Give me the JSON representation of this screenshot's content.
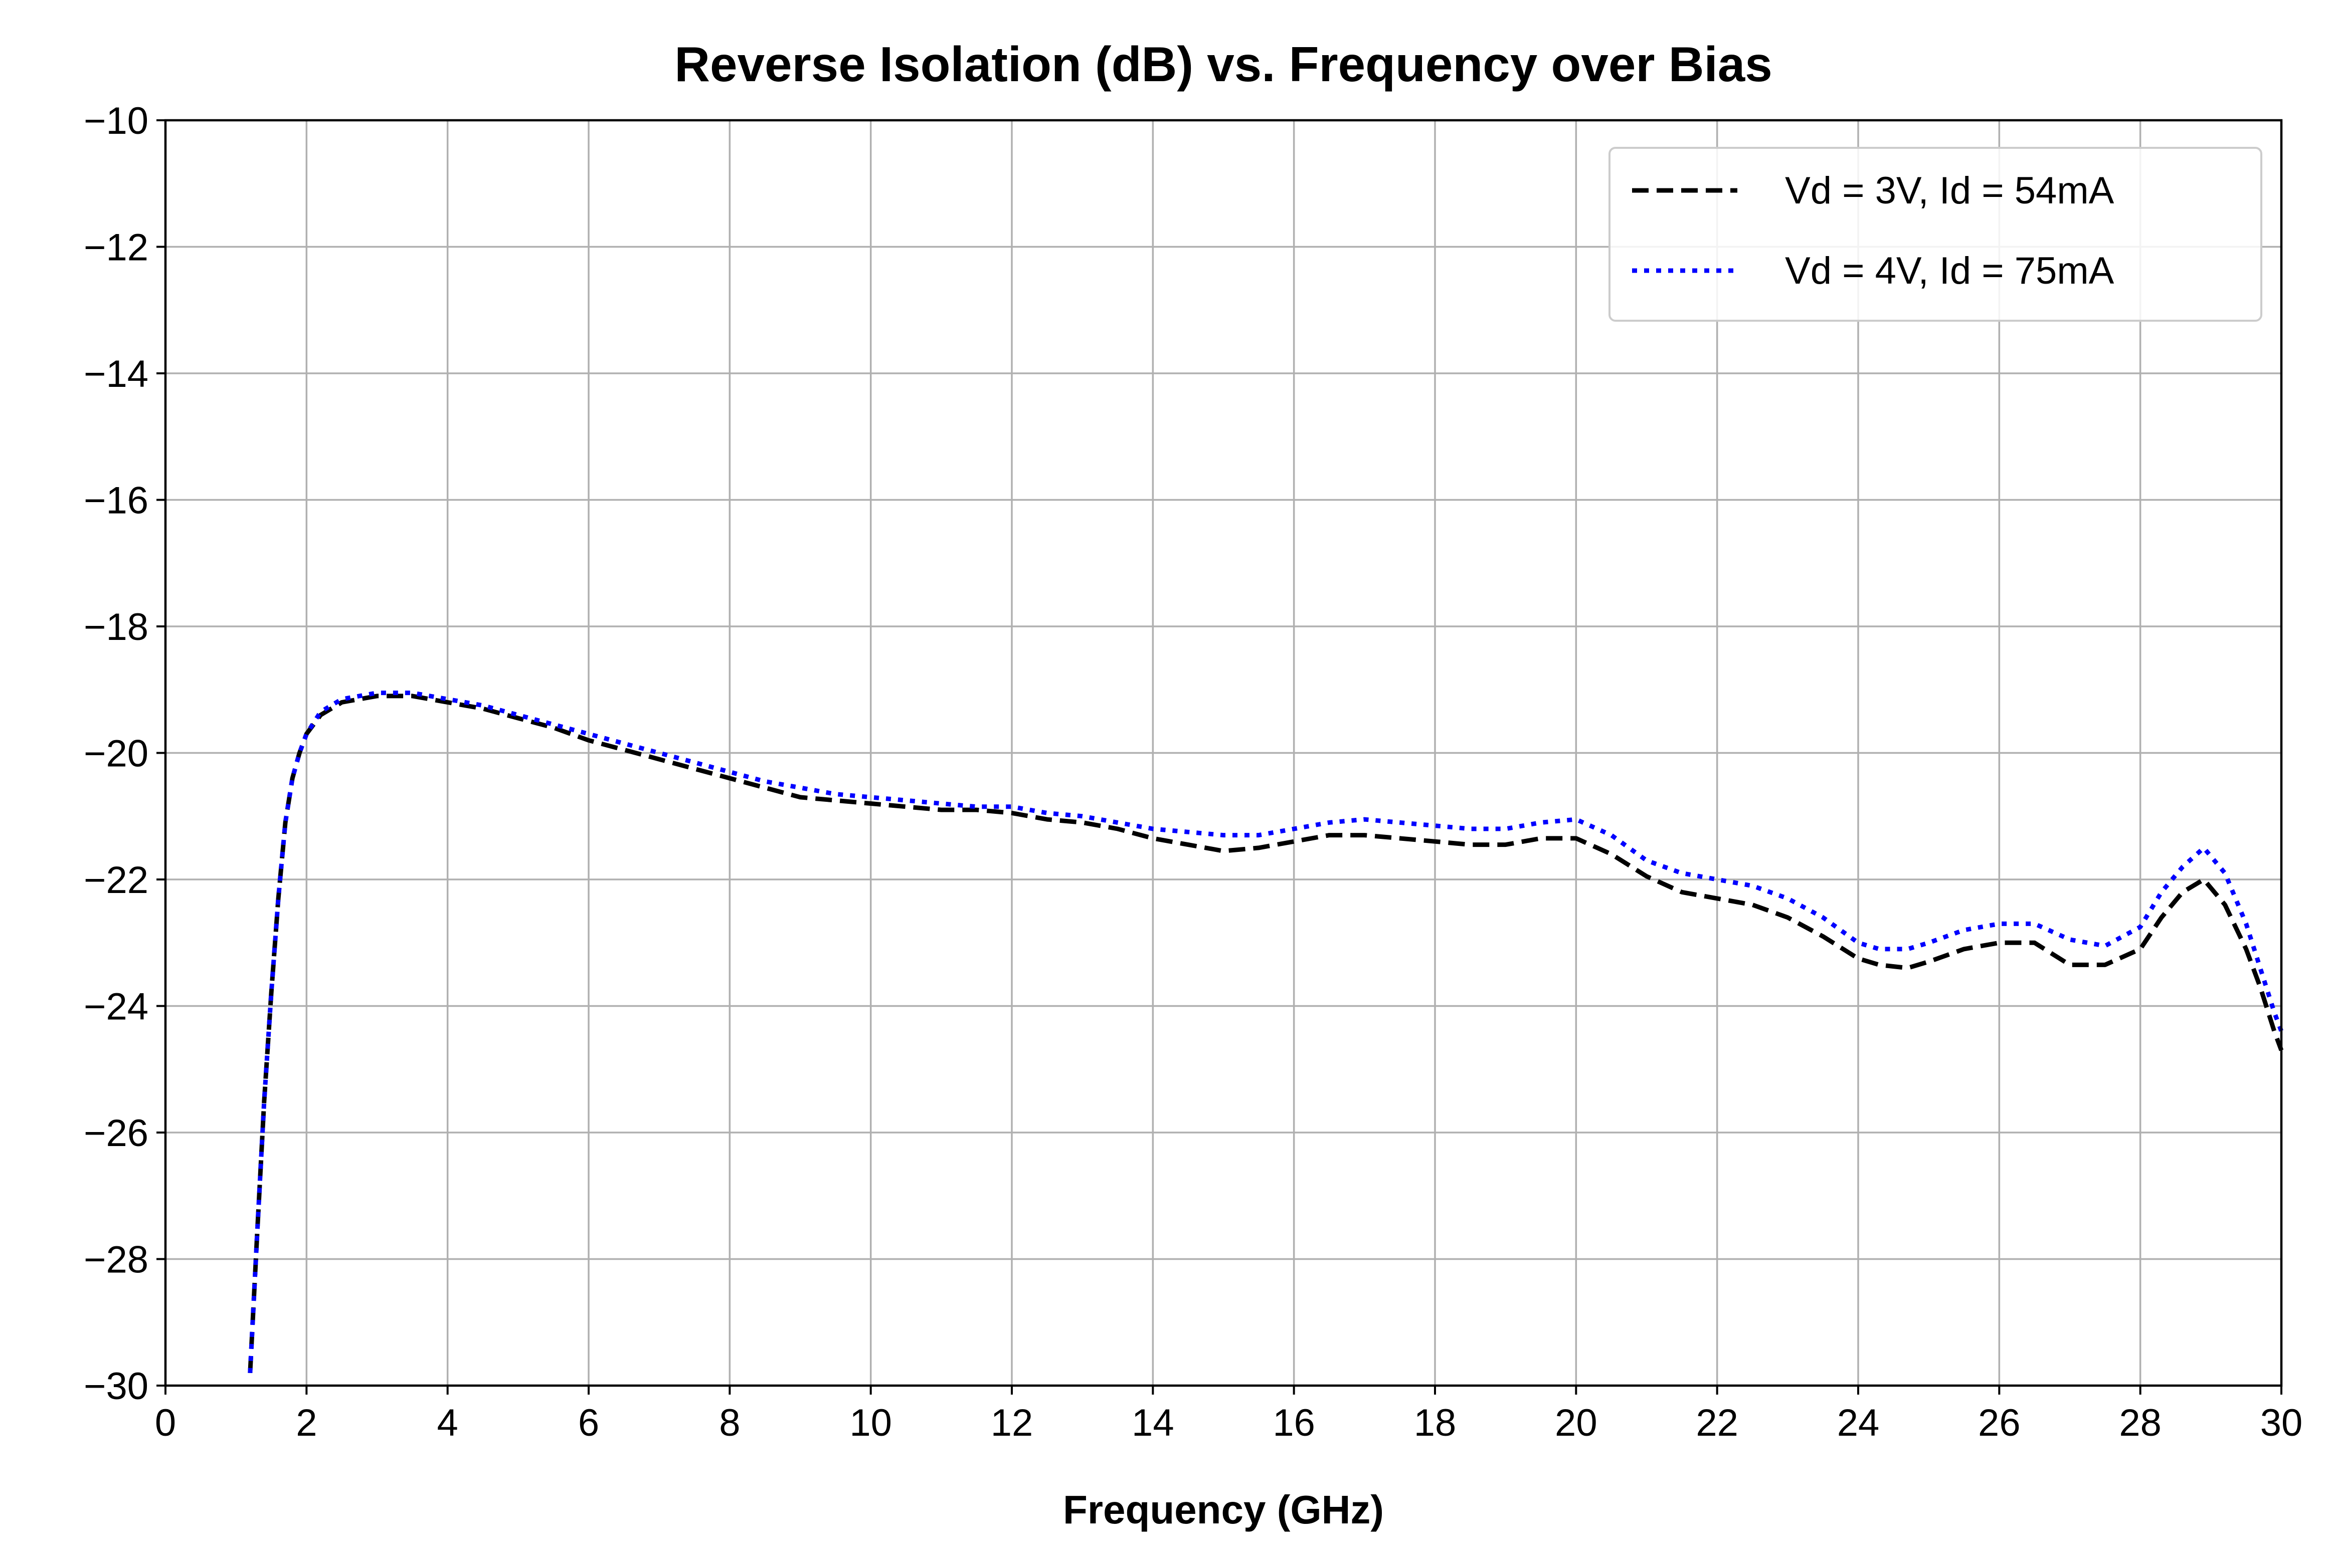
{
  "chart_data": {
    "type": "line",
    "title": "Reverse Isolation (dB) vs. Frequency over Bias",
    "xlabel": "Frequency (GHz)",
    "ylabel": "",
    "xlim": [
      0,
      30
    ],
    "ylim": [
      -30,
      -10
    ],
    "xticks": [
      0,
      2,
      4,
      6,
      8,
      10,
      12,
      14,
      16,
      18,
      20,
      22,
      24,
      26,
      28,
      30
    ],
    "yticks": [
      -30,
      -28,
      -26,
      -24,
      -22,
      -20,
      -18,
      -16,
      -14,
      -12,
      -10
    ],
    "xtick_labels": [
      "0",
      "2",
      "4",
      "6",
      "8",
      "10",
      "12",
      "14",
      "16",
      "18",
      "20",
      "22",
      "24",
      "26",
      "28",
      "30"
    ],
    "ytick_labels": [
      "−30",
      "−28",
      "−26",
      "−24",
      "−22",
      "−20",
      "−18",
      "−16",
      "−14",
      "−12",
      "−10"
    ],
    "grid": true,
    "legend_position": "top-right",
    "series": [
      {
        "name": "Vd = 3V, Id = 54mA",
        "color": "#000000",
        "style": "dashed",
        "x": [
          1.2,
          1.3,
          1.4,
          1.5,
          1.6,
          1.7,
          1.8,
          1.9,
          2.0,
          2.2,
          2.5,
          3.0,
          3.5,
          4.0,
          4.5,
          5.0,
          5.5,
          6.0,
          6.5,
          7.0,
          7.5,
          8.0,
          8.5,
          9.0,
          9.5,
          10.0,
          10.5,
          11.0,
          11.5,
          12.0,
          12.5,
          13.0,
          13.5,
          14.0,
          14.5,
          15.0,
          15.5,
          16.0,
          16.5,
          17.0,
          17.5,
          18.0,
          18.5,
          19.0,
          19.5,
          20.0,
          20.5,
          21.0,
          21.5,
          22.0,
          22.5,
          23.0,
          23.5,
          24.0,
          24.3,
          24.7,
          25.0,
          25.5,
          26.0,
          26.5,
          27.0,
          27.5,
          28.0,
          28.3,
          28.6,
          28.9,
          29.2,
          29.5,
          29.7,
          29.9,
          30.0
        ],
        "y": [
          -29.8,
          -27.6,
          -25.5,
          -23.8,
          -22.3,
          -21.1,
          -20.4,
          -20.0,
          -19.7,
          -19.4,
          -19.2,
          -19.1,
          -19.1,
          -19.2,
          -19.3,
          -19.45,
          -19.6,
          -19.8,
          -19.95,
          -20.1,
          -20.25,
          -20.4,
          -20.55,
          -20.7,
          -20.75,
          -20.8,
          -20.85,
          -20.9,
          -20.9,
          -20.95,
          -21.05,
          -21.1,
          -21.2,
          -21.35,
          -21.45,
          -21.55,
          -21.5,
          -21.4,
          -21.3,
          -21.3,
          -21.35,
          -21.4,
          -21.45,
          -21.45,
          -21.35,
          -21.35,
          -21.6,
          -21.95,
          -22.2,
          -22.3,
          -22.4,
          -22.6,
          -22.9,
          -23.25,
          -23.35,
          -23.4,
          -23.3,
          -23.1,
          -23.0,
          -23.0,
          -23.35,
          -23.35,
          -23.1,
          -22.6,
          -22.2,
          -22.0,
          -22.4,
          -23.1,
          -23.7,
          -24.4,
          -24.7
        ]
      },
      {
        "name": "Vd = 4V, Id = 75mA",
        "color": "#0000ff",
        "style": "dotted",
        "x": [
          1.2,
          1.3,
          1.4,
          1.5,
          1.6,
          1.7,
          1.8,
          1.9,
          2.0,
          2.2,
          2.5,
          3.0,
          3.5,
          4.0,
          4.5,
          5.0,
          5.5,
          6.0,
          6.5,
          7.0,
          7.5,
          8.0,
          8.5,
          9.0,
          9.5,
          10.0,
          10.5,
          11.0,
          11.5,
          12.0,
          12.5,
          13.0,
          13.5,
          14.0,
          14.5,
          15.0,
          15.5,
          16.0,
          16.5,
          17.0,
          17.5,
          18.0,
          18.5,
          19.0,
          19.5,
          20.0,
          20.5,
          21.0,
          21.5,
          22.0,
          22.5,
          23.0,
          23.5,
          24.0,
          24.3,
          24.7,
          25.0,
          25.5,
          26.0,
          26.5,
          27.0,
          27.5,
          28.0,
          28.3,
          28.6,
          28.9,
          29.2,
          29.5,
          29.7,
          29.9,
          30.0
        ],
        "y": [
          -29.8,
          -27.6,
          -25.5,
          -23.8,
          -22.3,
          -21.1,
          -20.4,
          -20.0,
          -19.7,
          -19.35,
          -19.15,
          -19.05,
          -19.05,
          -19.15,
          -19.25,
          -19.4,
          -19.55,
          -19.7,
          -19.85,
          -20.0,
          -20.15,
          -20.3,
          -20.45,
          -20.55,
          -20.65,
          -20.7,
          -20.75,
          -20.8,
          -20.85,
          -20.85,
          -20.95,
          -21.0,
          -21.1,
          -21.2,
          -21.25,
          -21.3,
          -21.3,
          -21.2,
          -21.1,
          -21.05,
          -21.1,
          -21.15,
          -21.2,
          -21.2,
          -21.1,
          -21.05,
          -21.3,
          -21.7,
          -21.9,
          -22.0,
          -22.1,
          -22.3,
          -22.6,
          -23.0,
          -23.1,
          -23.1,
          -23.0,
          -22.8,
          -22.7,
          -22.7,
          -22.95,
          -23.05,
          -22.75,
          -22.2,
          -21.8,
          -21.5,
          -21.9,
          -22.7,
          -23.4,
          -24.1,
          -24.4
        ]
      }
    ]
  }
}
